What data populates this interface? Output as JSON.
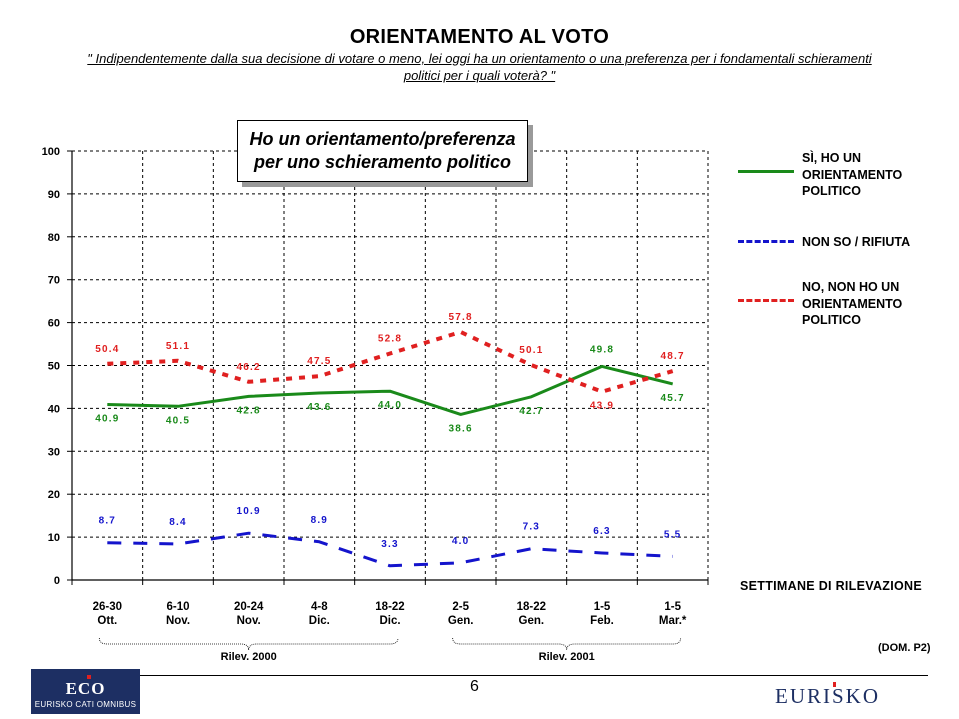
{
  "header": {
    "title": "ORIENTAMENTO AL VOTO",
    "question_line1": "\" Indipendentemente dalla sua decisione di votare o meno, lei oggi ha un orientamento o una preferenza per i fondamentali schieramenti",
    "question_line2": "politici per i quali voterà? \""
  },
  "callout": {
    "line1": "Ho un orientamento/preferenza",
    "line2": "per uno schieramento politico"
  },
  "chart_data": {
    "type": "line",
    "categories": [
      "26-30 Ott.",
      "6-10 Nov.",
      "20-24 Nov.",
      "4-8 Dic.",
      "18-22 Dic.",
      "2-5 Gen.",
      "18-22 Gen.",
      "1-5 Feb.",
      "1-5 Mar.*"
    ],
    "category_lines": [
      [
        "26-30",
        "Ott."
      ],
      [
        "6-10",
        "Nov."
      ],
      [
        "20-24",
        "Nov."
      ],
      [
        "4-8",
        "Dic."
      ],
      [
        "18-22",
        "Dic."
      ],
      [
        "2-5",
        "Gen."
      ],
      [
        "18-22",
        "Gen."
      ],
      [
        "1-5",
        "Feb."
      ],
      [
        "1-5",
        "Mar.*"
      ]
    ],
    "ylim": [
      0,
      100
    ],
    "yticks": [
      0,
      10,
      20,
      30,
      40,
      50,
      60,
      70,
      80,
      90,
      100
    ],
    "ytick_labels": [
      "0",
      "10",
      "20",
      "30",
      "40",
      "50",
      "60",
      "70",
      "80",
      "90",
      "100"
    ],
    "grid": "dashed",
    "xlabel": "SETTIMANE DI RILEVAZIONE",
    "legend_position": "right",
    "series": [
      {
        "name": "SÌ, HO UN ORIENTAMENTO POLITICO",
        "name_lines": [
          "SÌ, HO UN",
          "ORIENTAMENTO",
          "POLITICO"
        ],
        "style": "solid",
        "color": "#1a8a1a",
        "values": [
          40.9,
          40.5,
          42.8,
          43.6,
          44.0,
          38.6,
          42.7,
          49.8,
          45.7
        ],
        "labels": [
          "40.9",
          "40.5",
          "42.8",
          "43.6",
          "44.0",
          "38.6",
          "42.7",
          "49.8",
          "45.7"
        ]
      },
      {
        "name": "NON SO / RIFIUTA",
        "name_lines": [
          "NON SO / RIFIUTA"
        ],
        "style": "dashed",
        "color": "#1414cc",
        "values": [
          8.7,
          8.4,
          10.9,
          8.9,
          3.3,
          4.0,
          7.3,
          6.3,
          5.5
        ],
        "labels": [
          "8.7",
          "8.4",
          "10.9",
          "8.9",
          "3.3",
          "4.0",
          "7.3",
          "6.3",
          "5.5"
        ]
      },
      {
        "name": "NO, NON HO UN ORIENTAMENTO POLITICO",
        "name_lines": [
          "NO, NON HO UN",
          "ORIENTAMENTO",
          "POLITICO"
        ],
        "style": "dotted",
        "color": "#e02020",
        "values": [
          50.4,
          51.1,
          46.2,
          47.5,
          52.8,
          57.8,
          50.1,
          43.9,
          48.7
        ],
        "labels": [
          "50.4",
          "51.1",
          "46.2",
          "47.5",
          "52.8",
          "57.8",
          "50.1",
          "43.9",
          "48.7"
        ]
      }
    ],
    "groups": [
      {
        "label": "Rilev. 2000",
        "from": 0,
        "to": 4
      },
      {
        "label": "Rilev. 2001",
        "from": 5,
        "to": 8
      }
    ]
  },
  "footer": {
    "dom": "(DOM. P2)",
    "page": "6",
    "eco_logo": "ECO",
    "eco_subtitle": "EURISKO CATI OMNIBUS",
    "brand": "EURISKO"
  }
}
